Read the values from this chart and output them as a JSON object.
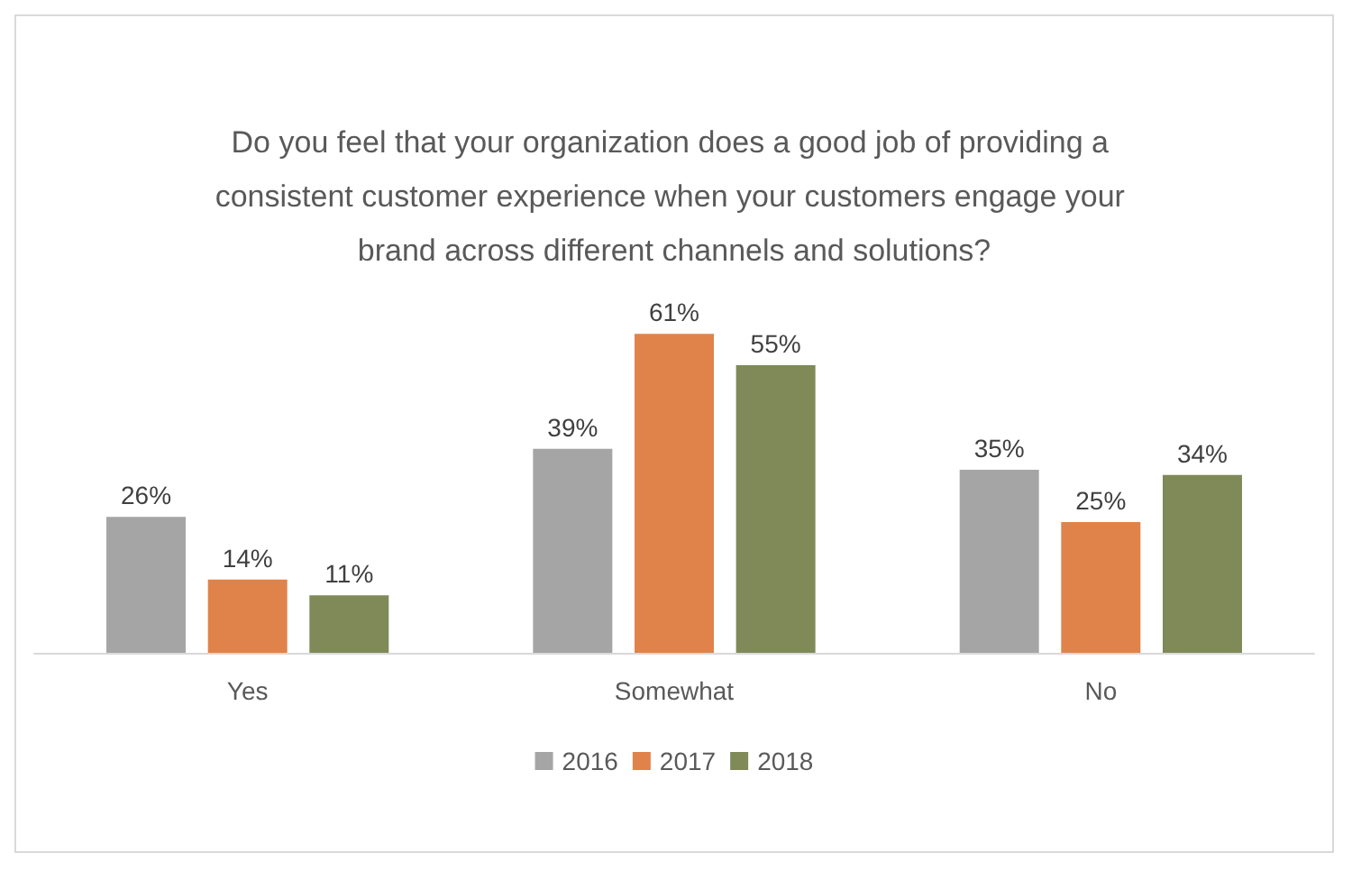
{
  "chart_data": {
    "type": "bar",
    "title": "Do you feel that your organization does a good job of providing a consistent customer experience when your customers engage your brand across different channels and solutions?",
    "categories": [
      "Yes",
      "Somewhat",
      "No"
    ],
    "series": [
      {
        "name": "2016",
        "color": "#a5a5a5",
        "values": [
          26,
          39,
          35
        ],
        "value_labels": [
          "26%",
          "39%",
          "35%"
        ]
      },
      {
        "name": "2017",
        "color": "#e0834a",
        "values": [
          14,
          61,
          25
        ],
        "value_labels": [
          "14%",
          "61%",
          "25%"
        ]
      },
      {
        "name": "2018",
        "color": "#7f8a58",
        "values": [
          11,
          55,
          34
        ],
        "value_labels": [
          "11%",
          "55%",
          "34%"
        ]
      }
    ],
    "legend": "bottom"
  }
}
